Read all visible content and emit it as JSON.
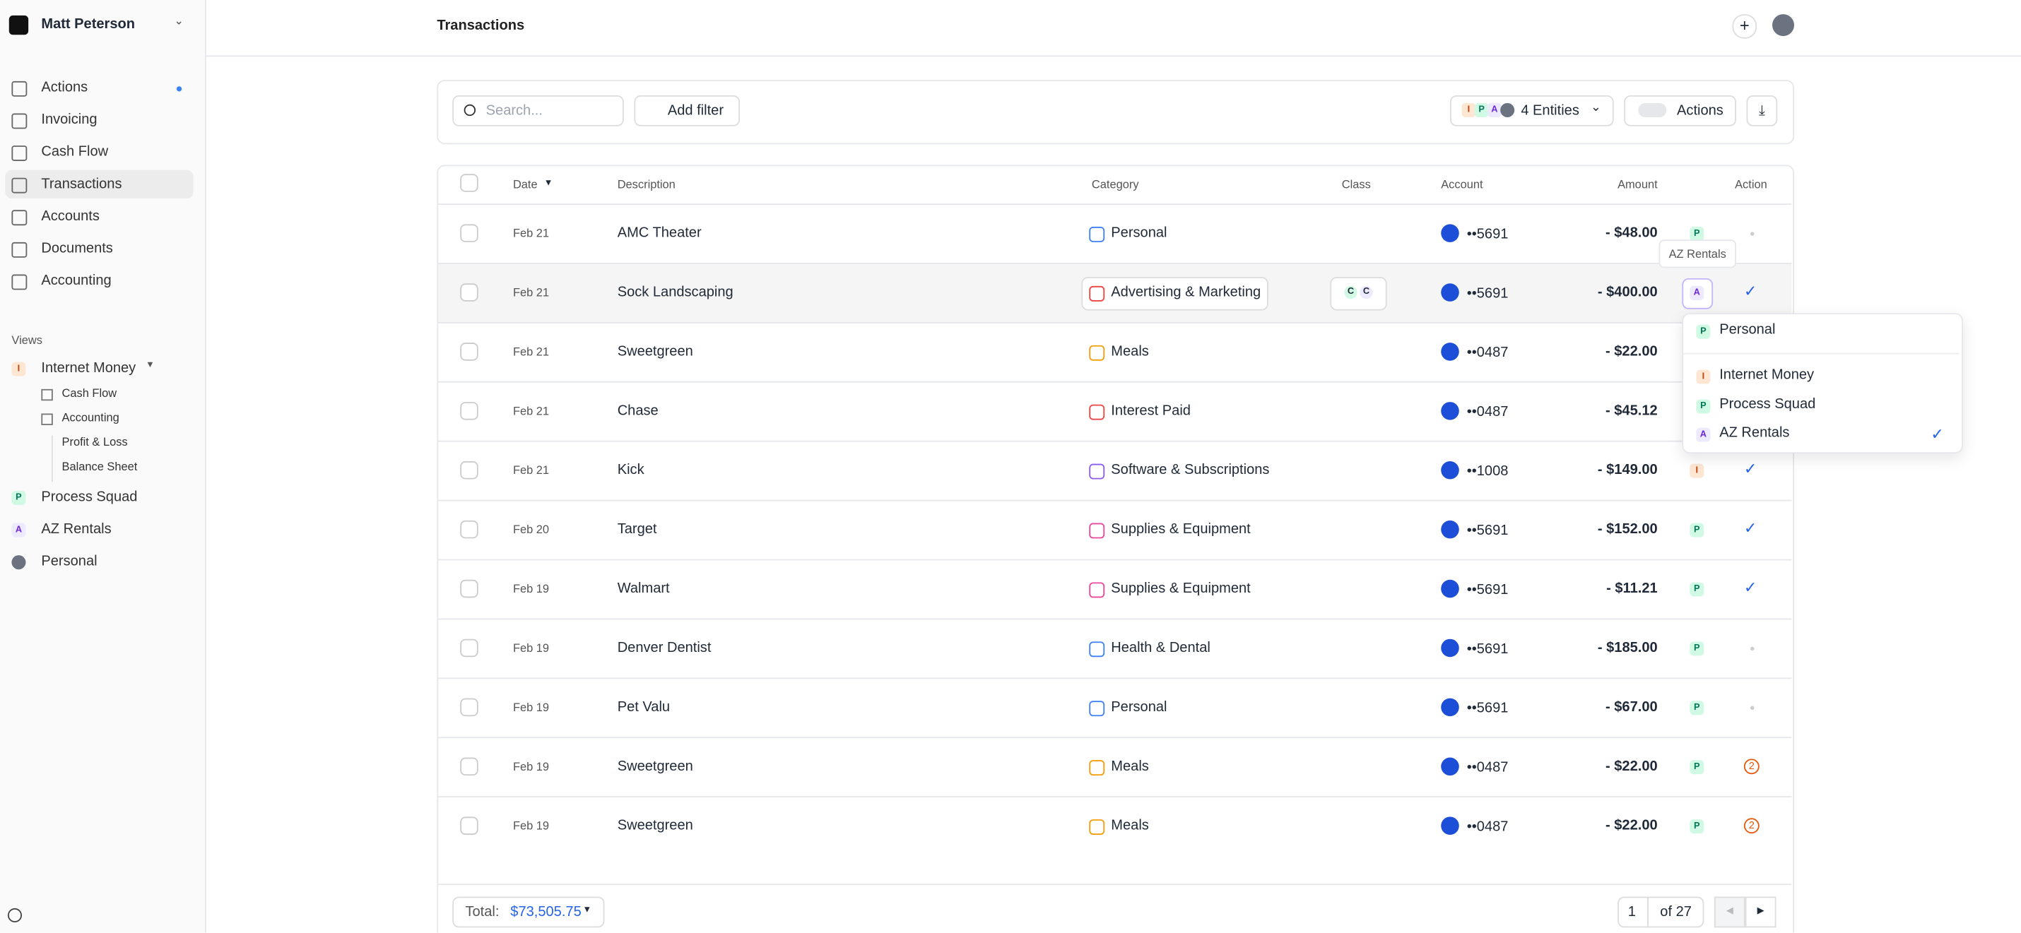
{
  "sidebar": {
    "user": "Matt Peterson",
    "nav": [
      "Actions",
      "Invoicing",
      "Cash Flow",
      "Transactions",
      "Accounts",
      "Documents",
      "Accounting"
    ],
    "views_label": "Views",
    "views": [
      {
        "badge": "I",
        "label": "Internet Money",
        "children": [
          "Cash Flow",
          "Accounting",
          "Profit & Loss",
          "Balance Sheet"
        ]
      },
      {
        "badge": "P",
        "label": "Process Squad"
      },
      {
        "badge": "A",
        "label": "AZ Rentals"
      },
      {
        "label": "Personal"
      }
    ]
  },
  "header": {
    "title": "Transactions"
  },
  "toolbar": {
    "search_placeholder": "Search...",
    "add_filter": "Add filter",
    "entity_badges": [
      "I",
      "P",
      "A"
    ],
    "entities": "4 Entities",
    "actions": "Actions"
  },
  "table": {
    "columns": [
      "Date",
      "Description",
      "Category",
      "Class",
      "Account",
      "Amount",
      "Action"
    ],
    "rows": [
      {
        "date": "Feb 21",
        "description": "AMC Theater",
        "category": "Personal",
        "icon_color": "#3b82f6",
        "class": [],
        "account": "••5691",
        "amount": "- $48.00",
        "entity": "P",
        "action": "dot"
      },
      {
        "date": "Feb 21",
        "description": "Sock Landscaping",
        "category": "Advertising & Marketing",
        "icon_color": "#ef4444",
        "class": [
          "C",
          "C"
        ],
        "account": "••5691",
        "amount": "- $400.00",
        "entity": "A",
        "action": "check"
      },
      {
        "date": "Feb 21",
        "description": "Sweetgreen",
        "category": "Meals",
        "icon_color": "#f59e0b",
        "class": [],
        "account": "••0487",
        "amount": "- $22.00",
        "entity": null,
        "action": null
      },
      {
        "date": "Feb 21",
        "description": "Chase",
        "category": "Interest Paid",
        "icon_color": "#ef4444",
        "class": [],
        "account": "••0487",
        "amount": "- $45.12",
        "entity": null,
        "action": null
      },
      {
        "date": "Feb 21",
        "description": "Kick",
        "category": "Software & Subscriptions",
        "icon_color": "#8b5cf6",
        "class": [],
        "account": "••1008",
        "amount": "- $149.00",
        "entity": "I",
        "action": "check"
      },
      {
        "date": "Feb 20",
        "description": "Target",
        "category": "Supplies & Equipment",
        "icon_color": "#ec4899",
        "class": [],
        "account": "••5691",
        "amount": "- $152.00",
        "entity": "P",
        "action": "check"
      },
      {
        "date": "Feb 19",
        "description": "Walmart",
        "category": "Supplies & Equipment",
        "icon_color": "#ec4899",
        "class": [],
        "account": "••5691",
        "amount": "- $11.21",
        "entity": "P",
        "action": "check"
      },
      {
        "date": "Feb 19",
        "description": "Denver Dentist",
        "category": "Health & Dental",
        "icon_color": "#3b82f6",
        "class": [],
        "account": "••5691",
        "amount": "- $185.00",
        "entity": "P",
        "action": "dot"
      },
      {
        "date": "Feb 19",
        "description": "Pet Valu",
        "category": "Personal",
        "icon_color": "#3b82f6",
        "class": [],
        "account": "••5691",
        "amount": "- $67.00",
        "entity": "P",
        "action": "dot"
      },
      {
        "date": "Feb 19",
        "description": "Sweetgreen",
        "category": "Meals",
        "icon_color": "#f59e0b",
        "class": [],
        "account": "••0487",
        "amount": "- $22.00",
        "entity": "P",
        "action": "2"
      },
      {
        "date": "Feb 19",
        "description": "Sweetgreen",
        "category": "Meals",
        "icon_color": "#f59e0b",
        "class": [],
        "account": "••0487",
        "amount": "- $22.00",
        "entity": "P",
        "action": "2"
      }
    ]
  },
  "tooltip": "AZ Rentals",
  "dropdown": {
    "items": [
      {
        "badge": "P",
        "label": "Personal"
      },
      {
        "badge": "I",
        "label": "Internet Money"
      },
      {
        "badge": "P",
        "label": "Process Squad"
      },
      {
        "badge": "A",
        "label": "AZ Rentals",
        "selected": true
      }
    ]
  },
  "footer": {
    "total_label": "Total:",
    "total": "$73,505.75",
    "page": "1",
    "of": "of 27"
  }
}
